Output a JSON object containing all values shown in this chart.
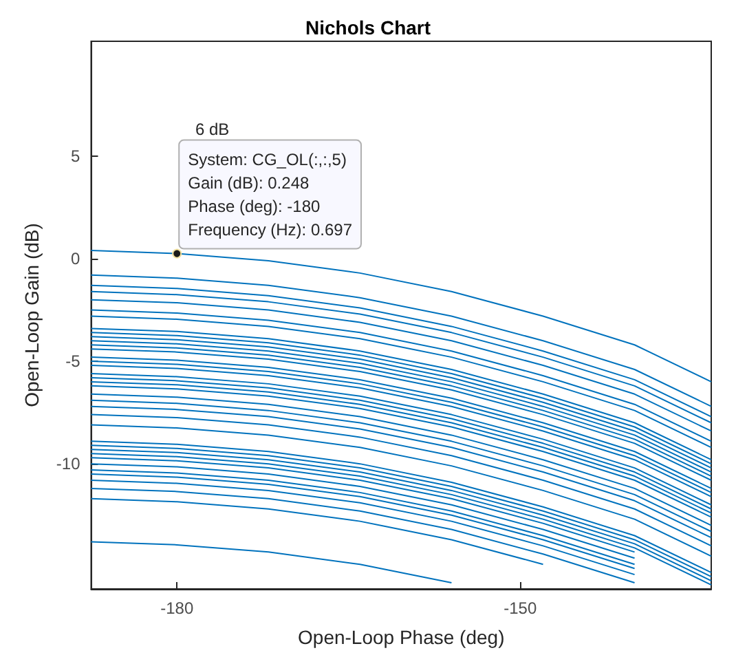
{
  "chart_data": {
    "type": "line",
    "title": "Nichols Chart",
    "xlabel": "Open-Loop Phase (deg)",
    "ylabel": "Open-Loop Gain (dB)",
    "xlim": [
      -187.5,
      -133.3
    ],
    "ylim": [
      -16.1,
      10.6
    ],
    "xticks": [
      -180,
      -150
    ],
    "yticks": [
      -10,
      -5,
      0,
      5
    ],
    "marker": "none",
    "line_style": "solid",
    "annotations": [
      {
        "text": "System: CG_OL(:,:,5)\nGain (dB): 0.248\nPhase (deg): -180\nFrequency (Hz): 0.697",
        "x": -180,
        "y": 0.248
      },
      "6 dB"
    ],
    "x": [
      -187.5,
      -180,
      -172,
      -164,
      -156,
      -148,
      -140,
      -133.3
    ],
    "series": [
      {
        "color": "#0072bd",
        "values": [
          0.4,
          0.25,
          -0.1,
          -0.7,
          -1.6,
          -2.8,
          -4.2,
          -6.0
        ]
      },
      {
        "color": "#0072bd",
        "values": [
          -0.8,
          -0.95,
          -1.3,
          -1.9,
          -2.8,
          -4.0,
          -5.4,
          -7.2
        ]
      },
      {
        "color": "#0072bd",
        "values": [
          -1.3,
          -1.45,
          -1.8,
          -2.4,
          -3.3,
          -4.5,
          -5.9,
          -7.7
        ]
      },
      {
        "color": "#0072bd",
        "values": [
          -1.6,
          -1.75,
          -2.1,
          -2.7,
          -3.6,
          -4.8,
          -6.2,
          -8.0
        ]
      },
      {
        "color": "#0072bd",
        "values": [
          -2.0,
          -2.15,
          -2.5,
          -3.1,
          -4.0,
          -5.2,
          -6.6,
          -8.4
        ]
      },
      {
        "color": "#0072bd",
        "values": [
          -2.5,
          -2.65,
          -3.0,
          -3.6,
          -4.5,
          -5.7,
          -7.1,
          -8.9
        ]
      },
      {
        "color": "#0072bd",
        "values": [
          -2.8,
          -2.95,
          -3.3,
          -3.9,
          -4.8,
          -6.0,
          -7.4,
          -9.2
        ]
      },
      {
        "color": "#0072bd",
        "values": [
          -3.4,
          -3.55,
          -3.9,
          -4.5,
          -5.4,
          -6.6,
          -8.0,
          -9.8
        ]
      },
      {
        "color": "#0072bd",
        "values": [
          -3.6,
          -3.75,
          -4.1,
          -4.7,
          -5.6,
          -6.8,
          -8.2,
          -10.0
        ]
      },
      {
        "color": "#0072bd",
        "values": [
          -3.8,
          -3.95,
          -4.3,
          -4.9,
          -5.8,
          -7.0,
          -8.4,
          -10.2
        ]
      },
      {
        "color": "#0072bd",
        "values": [
          -4.0,
          -4.15,
          -4.5,
          -5.1,
          -6.0,
          -7.2,
          -8.6,
          -10.4
        ]
      },
      {
        "color": "#0072bd",
        "values": [
          -4.2,
          -4.35,
          -4.7,
          -5.3,
          -6.2,
          -7.4,
          -8.8,
          -10.6
        ]
      },
      {
        "color": "#0072bd",
        "values": [
          -4.4,
          -4.55,
          -4.9,
          -5.5,
          -6.4,
          -7.6,
          -9.0,
          -10.8
        ]
      },
      {
        "color": "#0072bd",
        "values": [
          -4.8,
          -4.95,
          -5.3,
          -5.9,
          -6.8,
          -8.0,
          -9.4,
          -11.2
        ]
      },
      {
        "color": "#0072bd",
        "values": [
          -5.0,
          -5.15,
          -5.5,
          -6.1,
          -7.0,
          -8.2,
          -9.6,
          -11.4
        ]
      },
      {
        "color": "#0072bd",
        "values": [
          -5.2,
          -5.35,
          -5.7,
          -6.3,
          -7.2,
          -8.4,
          -9.8,
          -11.6
        ]
      },
      {
        "color": "#0072bd",
        "values": [
          -5.6,
          -5.75,
          -6.1,
          -6.7,
          -7.6,
          -8.8,
          -10.2,
          -12.0
        ]
      },
      {
        "color": "#0072bd",
        "values": [
          -5.8,
          -5.95,
          -6.3,
          -6.9,
          -7.8,
          -9.0,
          -10.4,
          -12.2
        ]
      },
      {
        "color": "#0072bd",
        "values": [
          -6.0,
          -6.15,
          -6.5,
          -7.1,
          -8.0,
          -9.2,
          -10.6,
          -12.4
        ]
      },
      {
        "color": "#0072bd",
        "values": [
          -6.2,
          -6.35,
          -6.7,
          -7.3,
          -8.2,
          -9.4,
          -10.8,
          -12.6
        ]
      },
      {
        "color": "#0072bd",
        "values": [
          -6.6,
          -6.75,
          -7.1,
          -7.7,
          -8.6,
          -9.8,
          -11.2,
          -13.0
        ]
      },
      {
        "color": "#0072bd",
        "values": [
          -6.9,
          -7.05,
          -7.4,
          -8.0,
          -8.9,
          -10.1,
          -11.5,
          -13.3
        ]
      },
      {
        "color": "#0072bd",
        "values": [
          -7.2,
          -7.35,
          -7.7,
          -8.3,
          -9.2,
          -10.4,
          -11.8,
          -13.6
        ]
      },
      {
        "color": "#0072bd",
        "values": [
          -7.6,
          -7.75,
          -8.1,
          -8.7,
          -9.6,
          -10.8,
          -12.2,
          -14.0
        ]
      },
      {
        "color": "#0072bd",
        "values": [
          -8.1,
          -8.25,
          -8.6,
          -9.2,
          -10.1,
          -11.3,
          -12.7,
          -14.5
        ]
      },
      {
        "color": "#0072bd",
        "values": [
          -8.9,
          -9.05,
          -9.4,
          -10.0,
          -10.9,
          -12.1,
          -13.5,
          -15.3
        ]
      },
      {
        "color": "#0072bd",
        "values": [
          -9.1,
          -9.25,
          -9.6,
          -10.2,
          -11.1,
          -12.3,
          -13.7,
          -15.5
        ]
      },
      {
        "color": "#0072bd",
        "values": [
          -9.3,
          -9.45,
          -9.8,
          -10.4,
          -11.3,
          -12.5,
          -13.9,
          -15.7
        ]
      },
      {
        "color": "#0072bd",
        "values": [
          -9.5,
          -9.65,
          -10.0,
          -10.6,
          -11.5,
          -12.7,
          -14.1,
          -15.9
        ]
      },
      {
        "color": "#0072bd",
        "values": [
          -9.7,
          -9.85,
          -10.2,
          -10.8,
          -11.7,
          -12.9,
          -14.3,
          null
        ]
      },
      {
        "color": "#0072bd",
        "values": [
          -10.0,
          -10.15,
          -10.5,
          -11.1,
          -12.0,
          -13.2,
          -14.6,
          null
        ]
      },
      {
        "color": "#0072bd",
        "values": [
          -10.3,
          -10.45,
          -10.8,
          -11.4,
          -12.3,
          -13.5,
          -14.9,
          null
        ]
      },
      {
        "color": "#0072bd",
        "values": [
          -10.5,
          -10.65,
          -11.0,
          -11.6,
          -12.5,
          -13.7,
          -15.1,
          null
        ]
      },
      {
        "color": "#0072bd",
        "values": [
          -10.8,
          -10.95,
          -11.3,
          -11.9,
          -12.8,
          -14.0,
          -15.4,
          null
        ]
      },
      {
        "color": "#0072bd",
        "values": [
          -11.2,
          -11.35,
          -11.7,
          -12.3,
          -13.2,
          -14.4,
          -15.8,
          null
        ]
      },
      {
        "color": "#0072bd",
        "values": [
          -11.7,
          -11.85,
          -12.2,
          -12.8,
          -13.7,
          -14.9,
          null,
          null
        ]
      },
      {
        "color": "#0072bd",
        "values": [
          -13.8,
          -13.95,
          -14.3,
          -14.9,
          -15.8,
          null,
          null,
          null
        ]
      }
    ]
  }
}
